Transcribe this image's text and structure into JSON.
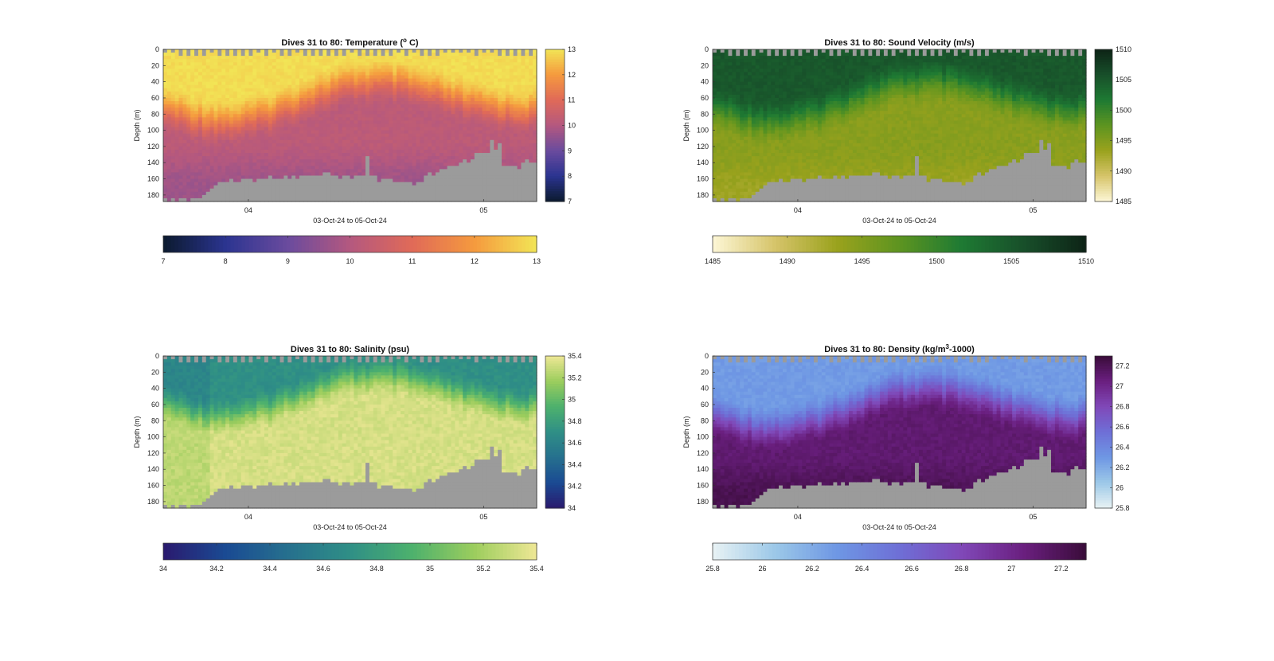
{
  "chart_data": [
    {
      "type": "heatmap",
      "variable": "temperature",
      "title": "Dives 31 to 80: Temperature (",
      "title_sup": "o",
      "title_end": " C)",
      "ylabel": "Depth (m)",
      "xlabel": "03-Oct-24 to 05-Oct-24",
      "x_ticks": [
        "04",
        "05"
      ],
      "y_ticks": [
        "0",
        "20",
        "40",
        "60",
        "80",
        "100",
        "120",
        "140",
        "160",
        "180"
      ],
      "ylim": [
        0,
        188
      ],
      "clim": [
        7,
        13
      ],
      "colorbar_ticks": [
        "7",
        "8",
        "9",
        "10",
        "11",
        "12",
        "13"
      ],
      "colormap": [
        "#0b1a2e",
        "#2b3490",
        "#6a4b9e",
        "#b4587f",
        "#e06a58",
        "#f59a3e",
        "#f2e556"
      ],
      "seafloor_color": "#9b9b9b"
    },
    {
      "type": "heatmap",
      "variable": "sound_velocity",
      "title": "Dives 31 to 80: Sound Velocity (m/s)",
      "ylabel": "Depth (m)",
      "xlabel": "03-Oct-24 to 05-Oct-24",
      "x_ticks": [
        "04",
        "05"
      ],
      "y_ticks": [
        "0",
        "20",
        "40",
        "60",
        "80",
        "100",
        "120",
        "140",
        "160",
        "180"
      ],
      "ylim": [
        0,
        188
      ],
      "clim": [
        1485,
        1510
      ],
      "colorbar_ticks": [
        "1485",
        "1490",
        "1495",
        "1500",
        "1505",
        "1510"
      ],
      "colormap": [
        "#fdf7d6",
        "#d6c46a",
        "#9aa21d",
        "#5d9420",
        "#1e7a33",
        "#184f2a",
        "#0d2316"
      ],
      "seafloor_color": "#9b9b9b"
    },
    {
      "type": "heatmap",
      "variable": "salinity",
      "title": "Dives 31 to 80: Salinity (psu)",
      "ylabel": "Depth (m)",
      "xlabel": "03-Oct-24 to 05-Oct-24",
      "x_ticks": [
        "04",
        "05"
      ],
      "y_ticks": [
        "0",
        "20",
        "40",
        "60",
        "80",
        "100",
        "120",
        "140",
        "160",
        "180"
      ],
      "ylim": [
        0,
        188
      ],
      "clim": [
        34,
        35.4
      ],
      "colorbar_ticks": [
        "34",
        "34.2",
        "34.4",
        "34.6",
        "34.8",
        "35",
        "35.2",
        "35.4"
      ],
      "colormap": [
        "#2a1a6e",
        "#1a4a93",
        "#26708e",
        "#2f8f86",
        "#4db16d",
        "#9ccd5d",
        "#eee795"
      ],
      "seafloor_color": "#9b9b9b"
    },
    {
      "type": "heatmap",
      "variable": "density",
      "title": "Dives 31 to 80: Density (kg/m",
      "title_sup": "3",
      "title_end": "-1000)",
      "ylabel": "Depth (m)",
      "xlabel": "03-Oct-24 to 05-Oct-24",
      "x_ticks": [
        "04",
        "05"
      ],
      "y_ticks": [
        "0",
        "20",
        "40",
        "60",
        "80",
        "100",
        "120",
        "140",
        "160",
        "180"
      ],
      "ylim": [
        0,
        188
      ],
      "clim": [
        25.8,
        27.3
      ],
      "colorbar_ticks": [
        "25.8",
        "26",
        "26.2",
        "26.4",
        "26.6",
        "26.8",
        "27",
        "27.2"
      ],
      "colormap": [
        "#e8f2f4",
        "#9cc8e8",
        "#6e97e4",
        "#6e6fd6",
        "#8048b8",
        "#6a1f7f",
        "#3a0c3a"
      ],
      "seafloor_color": "#9b9b9b"
    }
  ]
}
